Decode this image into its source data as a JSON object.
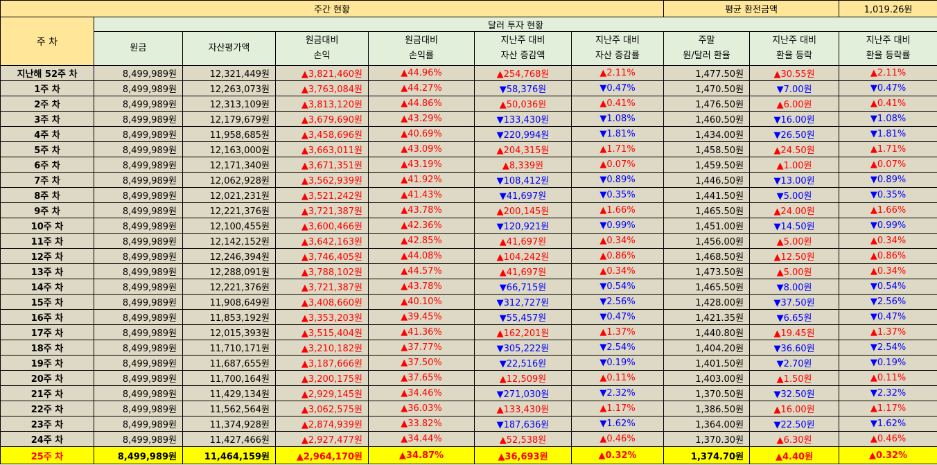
{
  "top": {
    "title": "주간 현황",
    "avg_label": "평균 환전금액",
    "avg_value": "1,019.26원"
  },
  "headers": {
    "week": "주 차",
    "group": "달러 투자 현황",
    "principal": "원금",
    "asset_value": "자산평가액",
    "pl_1": "원금대비",
    "pl_2": "손익",
    "plr_1": "원금대비",
    "plr_2": "손익률",
    "chg_1": "지난주 대비",
    "chg_2": "자산 증감액",
    "chgr_1": "지난주 대비",
    "chgr_2": "자산 증감률",
    "rate_1": "주말",
    "rate_2": "원/달러 환율",
    "fx_1": "지난주 대비",
    "fx_2": "환율 등락",
    "fxr_1": "지난주 대비",
    "fxr_2": "환율 등락률"
  },
  "rows": [
    {
      "week": "지난해 52주 차",
      "principal": "8,499,989원",
      "value": "12,321,449원",
      "pl": "▲3,821,460원",
      "plr": "▲44.96%",
      "chg": "▲254,768원",
      "chgr": "▲2.11%",
      "rate": "1,477.50원",
      "fx": "▲30.55원",
      "fxr": "▲2.11%"
    },
    {
      "week": "1주 차",
      "principal": "8,499,989원",
      "value": "12,263,073원",
      "pl": "▲3,763,084원",
      "plr": "▲44.27%",
      "chg": "▼58,376원",
      "chgr": "▼0.47%",
      "rate": "1,470.50원",
      "fx": "▼7.00원",
      "fxr": "▼0.47%"
    },
    {
      "week": "2주 차",
      "principal": "8,499,989원",
      "value": "12,313,109원",
      "pl": "▲3,813,120원",
      "plr": "▲44.86%",
      "chg": "▲50,036원",
      "chgr": "▲0.41%",
      "rate": "1,476.50원",
      "fx": "▲6.00원",
      "fxr": "▲0.41%"
    },
    {
      "week": "3주 차",
      "principal": "8,499,989원",
      "value": "12,179,679원",
      "pl": "▲3,679,690원",
      "plr": "▲43.29%",
      "chg": "▼133,430원",
      "chgr": "▼1.08%",
      "rate": "1,460.50원",
      "fx": "▼16.00원",
      "fxr": "▼1.08%"
    },
    {
      "week": "4주 차",
      "principal": "8,499,989원",
      "value": "11,958,685원",
      "pl": "▲3,458,696원",
      "plr": "▲40.69%",
      "chg": "▼220,994원",
      "chgr": "▼1.81%",
      "rate": "1,434.00원",
      "fx": "▼26.50원",
      "fxr": "▼1.81%"
    },
    {
      "week": "5주 차",
      "principal": "8,499,989원",
      "value": "12,163,000원",
      "pl": "▲3,663,011원",
      "plr": "▲43.09%",
      "chg": "▲204,315원",
      "chgr": "▲1.71%",
      "rate": "1,458.50원",
      "fx": "▲24.50원",
      "fxr": "▲1.71%"
    },
    {
      "week": "6주 차",
      "principal": "8,499,989원",
      "value": "12,171,340원",
      "pl": "▲3,671,351원",
      "plr": "▲43.19%",
      "chg": "▲8,339원",
      "chgr": "▲0.07%",
      "rate": "1,459.50원",
      "fx": "▲1.00원",
      "fxr": "▲0.07%"
    },
    {
      "week": "7주 차",
      "principal": "8,499,989원",
      "value": "12,062,928원",
      "pl": "▲3,562,939원",
      "plr": "▲41.92%",
      "chg": "▼108,412원",
      "chgr": "▼0.89%",
      "rate": "1,446.50원",
      "fx": "▼13.00원",
      "fxr": "▼0.89%"
    },
    {
      "week": "8주 차",
      "principal": "8,499,989원",
      "value": "12,021,231원",
      "pl": "▲3,521,242원",
      "plr": "▲41.43%",
      "chg": "▼41,697원",
      "chgr": "▼0.35%",
      "rate": "1,441.50원",
      "fx": "▼5.00원",
      "fxr": "▼0.35%"
    },
    {
      "week": "9주 차",
      "principal": "8,499,989원",
      "value": "12,221,376원",
      "pl": "▲3,721,387원",
      "plr": "▲43.78%",
      "chg": "▲200,145원",
      "chgr": "▲1.66%",
      "rate": "1,465.50원",
      "fx": "▲24.00원",
      "fxr": "▲1.66%"
    },
    {
      "week": "10주 차",
      "principal": "8,499,989원",
      "value": "12,100,455원",
      "pl": "▲3,600,466원",
      "plr": "▲42.36%",
      "chg": "▼120,921원",
      "chgr": "▼0.99%",
      "rate": "1,451.00원",
      "fx": "▼14.50원",
      "fxr": "▼0.99%"
    },
    {
      "week": "11주 차",
      "principal": "8,499,989원",
      "value": "12,142,152원",
      "pl": "▲3,642,163원",
      "plr": "▲42.85%",
      "chg": "▲41,697원",
      "chgr": "▲0.34%",
      "rate": "1,456.00원",
      "fx": "▲5.00원",
      "fxr": "▲0.34%"
    },
    {
      "week": "12주 차",
      "principal": "8,499,989원",
      "value": "12,246,394원",
      "pl": "▲3,746,405원",
      "plr": "▲44.08%",
      "chg": "▲104,242원",
      "chgr": "▲0.86%",
      "rate": "1,468.50원",
      "fx": "▲12.50원",
      "fxr": "▲0.86%"
    },
    {
      "week": "13주 차",
      "principal": "8,499,989원",
      "value": "12,288,091원",
      "pl": "▲3,788,102원",
      "plr": "▲44.57%",
      "chg": "▲41,697원",
      "chgr": "▲0.34%",
      "rate": "1,473.50원",
      "fx": "▲5.00원",
      "fxr": "▲0.34%"
    },
    {
      "week": "14주 차",
      "principal": "8,499,989원",
      "value": "12,221,376원",
      "pl": "▲3,721,387원",
      "plr": "▲43.78%",
      "chg": "▼66,715원",
      "chgr": "▼0.54%",
      "rate": "1,465.50원",
      "fx": "▼8.00원",
      "fxr": "▼0.54%"
    },
    {
      "week": "15주 차",
      "principal": "8,499,989원",
      "value": "11,908,649원",
      "pl": "▲3,408,660원",
      "plr": "▲40.10%",
      "chg": "▼312,727원",
      "chgr": "▼2.56%",
      "rate": "1,428.00원",
      "fx": "▼37.50원",
      "fxr": "▼2.56%"
    },
    {
      "week": "16주 차",
      "principal": "8,499,989원",
      "value": "11,853,192원",
      "pl": "▲3,353,203원",
      "plr": "▲39.45%",
      "chg": "▼55,457원",
      "chgr": "▼0.47%",
      "rate": "1,421.35원",
      "fx": "▼6.65원",
      "fxr": "▼0.47%"
    },
    {
      "week": "17주 차",
      "principal": "8,499,989원",
      "value": "12,015,393원",
      "pl": "▲3,515,404원",
      "plr": "▲41.36%",
      "chg": "▲162,201원",
      "chgr": "▲1.37%",
      "rate": "1,440.80원",
      "fx": "▲19.45원",
      "fxr": "▲1.37%"
    },
    {
      "week": "18주 차",
      "principal": "8,499,989원",
      "value": "11,710,171원",
      "pl": "▲3,210,182원",
      "plr": "▲37.77%",
      "chg": "▼305,222원",
      "chgr": "▼2.54%",
      "rate": "1,404.20원",
      "fx": "▼36.60원",
      "fxr": "▼2.54%"
    },
    {
      "week": "19주 차",
      "principal": "8,499,989원",
      "value": "11,687,655원",
      "pl": "▲3,187,666원",
      "plr": "▲37.50%",
      "chg": "▼22,516원",
      "chgr": "▼0.19%",
      "rate": "1,401.50원",
      "fx": "▼2.70원",
      "fxr": "▼0.19%"
    },
    {
      "week": "20주 차",
      "principal": "8,499,989원",
      "value": "11,700,164원",
      "pl": "▲3,200,175원",
      "plr": "▲37.65%",
      "chg": "▲12,509원",
      "chgr": "▲0.11%",
      "rate": "1,403.00원",
      "fx": "▲1.50원",
      "fxr": "▲0.11%"
    },
    {
      "week": "21주 차",
      "principal": "8,499,989원",
      "value": "11,429,134원",
      "pl": "▲2,929,145원",
      "plr": "▲34.46%",
      "chg": "▼271,030원",
      "chgr": "▼2.32%",
      "rate": "1,370.50원",
      "fx": "▼32.50원",
      "fxr": "▼2.32%"
    },
    {
      "week": "22주 차",
      "principal": "8,499,989원",
      "value": "11,562,564원",
      "pl": "▲3,062,575원",
      "plr": "▲36.03%",
      "chg": "▲133,430원",
      "chgr": "▲1.17%",
      "rate": "1,386.50원",
      "fx": "▲16.00원",
      "fxr": "▲1.17%"
    },
    {
      "week": "23주 차",
      "principal": "8,499,989원",
      "value": "11,374,928원",
      "pl": "▲2,874,939원",
      "plr": "▲33.82%",
      "chg": "▼187,636원",
      "chgr": "▼1.62%",
      "rate": "1,364.00원",
      "fx": "▼22.50원",
      "fxr": "▼1.62%"
    },
    {
      "week": "24주 차",
      "principal": "8,499,989원",
      "value": "11,427,466원",
      "pl": "▲2,927,477원",
      "plr": "▲34.44%",
      "chg": "▲52,538원",
      "chgr": "▲0.46%",
      "rate": "1,370.30원",
      "fx": "▲6.30원",
      "fxr": "▲0.46%"
    },
    {
      "week": "25주 차",
      "principal": "8,499,989원",
      "value": "11,464,159원",
      "pl": "▲2,964,170원",
      "plr": "▲34.87%",
      "chg": "▲36,693원",
      "chgr": "▲0.32%",
      "rate": "1,374.70원",
      "fx": "▲4.40원",
      "fxr": "▲0.32%"
    }
  ],
  "colors": {
    "up": "#ff0000",
    "down": "#0000ff",
    "header": "#ffe699",
    "subheader": "#e2efda",
    "body": "#ddd9c4",
    "current": "#ffff00"
  }
}
